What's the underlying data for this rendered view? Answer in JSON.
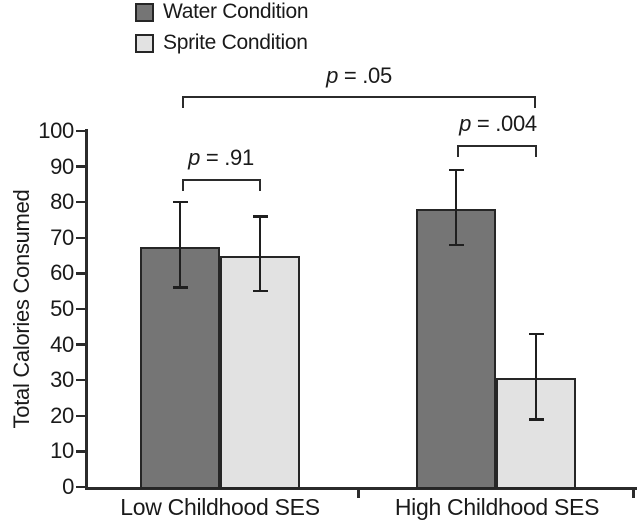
{
  "figure": {
    "background": "#ffffff",
    "line_color": "#2b2b2b",
    "text_color": "#1a1a1a"
  },
  "chart_data": {
    "type": "bar",
    "title": "",
    "xlabel": "",
    "ylabel": "Total Calories Consumed",
    "ylim": [
      0,
      100
    ],
    "ytick_step": 10,
    "grid": false,
    "legend_position": "top-left",
    "categories": [
      "Low Childhood SES",
      "High Childhood SES"
    ],
    "series": [
      {
        "name": "Water Condition",
        "color": "#757575",
        "values": [
          67.5,
          78
        ],
        "error_low": [
          56,
          68
        ],
        "error_high": [
          80,
          89
        ]
      },
      {
        "name": "Sprite Condition",
        "color": "#e2e2e2",
        "values": [
          65,
          30.5
        ],
        "error_low": [
          55,
          19
        ],
        "error_high": [
          76,
          43
        ]
      }
    ],
    "annotations": [
      {
        "spans": [
          "low-water",
          "low-sprite"
        ],
        "p_symbol": "p",
        "p_text": " = .91"
      },
      {
        "spans": [
          "high-water",
          "high-sprite"
        ],
        "p_symbol": "p",
        "p_text": " = .004"
      },
      {
        "spans": [
          "low-water",
          "high-sprite"
        ],
        "p_symbol": "p",
        "p_text": " = .05"
      }
    ]
  }
}
